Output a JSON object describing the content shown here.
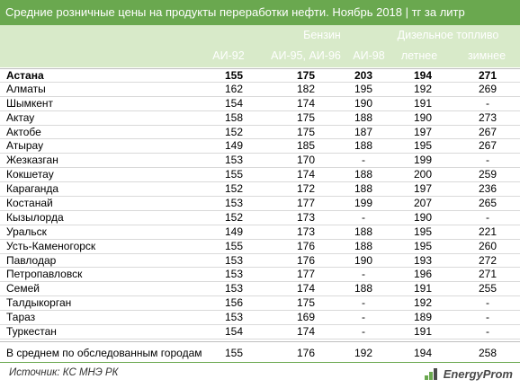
{
  "title": "Средние розничные цены на продукты переработки нефти. Ноябрь 2018  | тг за литр",
  "header": {
    "group_petrol": "Бензин",
    "group_diesel": "Дизельное топливо",
    "col1": "АИ-92",
    "col2": "АИ-95, АИ-96",
    "col3": "АИ-98",
    "col4": "летнее",
    "col5": "зимнее"
  },
  "rows": [
    {
      "city": "Астана",
      "c1": "155",
      "c2": "175",
      "c3": "203",
      "c4": "194",
      "c5": "271"
    },
    {
      "city": "Алматы",
      "c1": "162",
      "c2": "182",
      "c3": "195",
      "c4": "192",
      "c5": "269"
    },
    {
      "city": "Шымкент",
      "c1": "154",
      "c2": "174",
      "c3": "190",
      "c4": "191",
      "c5": "-"
    },
    {
      "city": "Актау",
      "c1": "158",
      "c2": "175",
      "c3": "188",
      "c4": "190",
      "c5": "273"
    },
    {
      "city": "Актобе",
      "c1": "152",
      "c2": "175",
      "c3": "187",
      "c4": "197",
      "c5": "267"
    },
    {
      "city": "Атырау",
      "c1": "149",
      "c2": "185",
      "c3": "188",
      "c4": "195",
      "c5": "267"
    },
    {
      "city": "Жезказган",
      "c1": "153",
      "c2": "170",
      "c3": "-",
      "c4": "199",
      "c5": "-"
    },
    {
      "city": "Кокшетау",
      "c1": "155",
      "c2": "174",
      "c3": "188",
      "c4": "200",
      "c5": "259"
    },
    {
      "city": "Караганда",
      "c1": "152",
      "c2": "172",
      "c3": "188",
      "c4": "197",
      "c5": "236"
    },
    {
      "city": "Костанай",
      "c1": "153",
      "c2": "177",
      "c3": "199",
      "c4": "207",
      "c5": "265"
    },
    {
      "city": "Кызылорда",
      "c1": "152",
      "c2": "173",
      "c3": "-",
      "c4": "190",
      "c5": "-"
    },
    {
      "city": "Уральск",
      "c1": "149",
      "c2": "173",
      "c3": "188",
      "c4": "195",
      "c5": "221"
    },
    {
      "city": "Усть-Каменогорск",
      "c1": "155",
      "c2": "176",
      "c3": "188",
      "c4": "195",
      "c5": "260"
    },
    {
      "city": "Павлодар",
      "c1": "153",
      "c2": "176",
      "c3": "190",
      "c4": "193",
      "c5": "272"
    },
    {
      "city": "Петропавловск",
      "c1": "153",
      "c2": "177",
      "c3": "-",
      "c4": "196",
      "c5": "271"
    },
    {
      "city": "Семей",
      "c1": "153",
      "c2": "174",
      "c3": "188",
      "c4": "191",
      "c5": "255"
    },
    {
      "city": "Талдыкорган",
      "c1": "156",
      "c2": "175",
      "c3": "-",
      "c4": "192",
      "c5": "-"
    },
    {
      "city": "Тараз",
      "c1": "153",
      "c2": "169",
      "c3": "-",
      "c4": "189",
      "c5": "-"
    },
    {
      "city": "Туркестан",
      "c1": "154",
      "c2": "174",
      "c3": "-",
      "c4": "191",
      "c5": "-"
    }
  ],
  "average": {
    "city": "В среднем по обследованным городам",
    "c1": "155",
    "c2": "176",
    "c3": "192",
    "c4": "194",
    "c5": "258"
  },
  "source": "Источник: КС МНЭ РК",
  "logo": "EnergyProm",
  "colors": {
    "header_green": "#6aa84f",
    "subheader_green": "#d8eac9"
  }
}
